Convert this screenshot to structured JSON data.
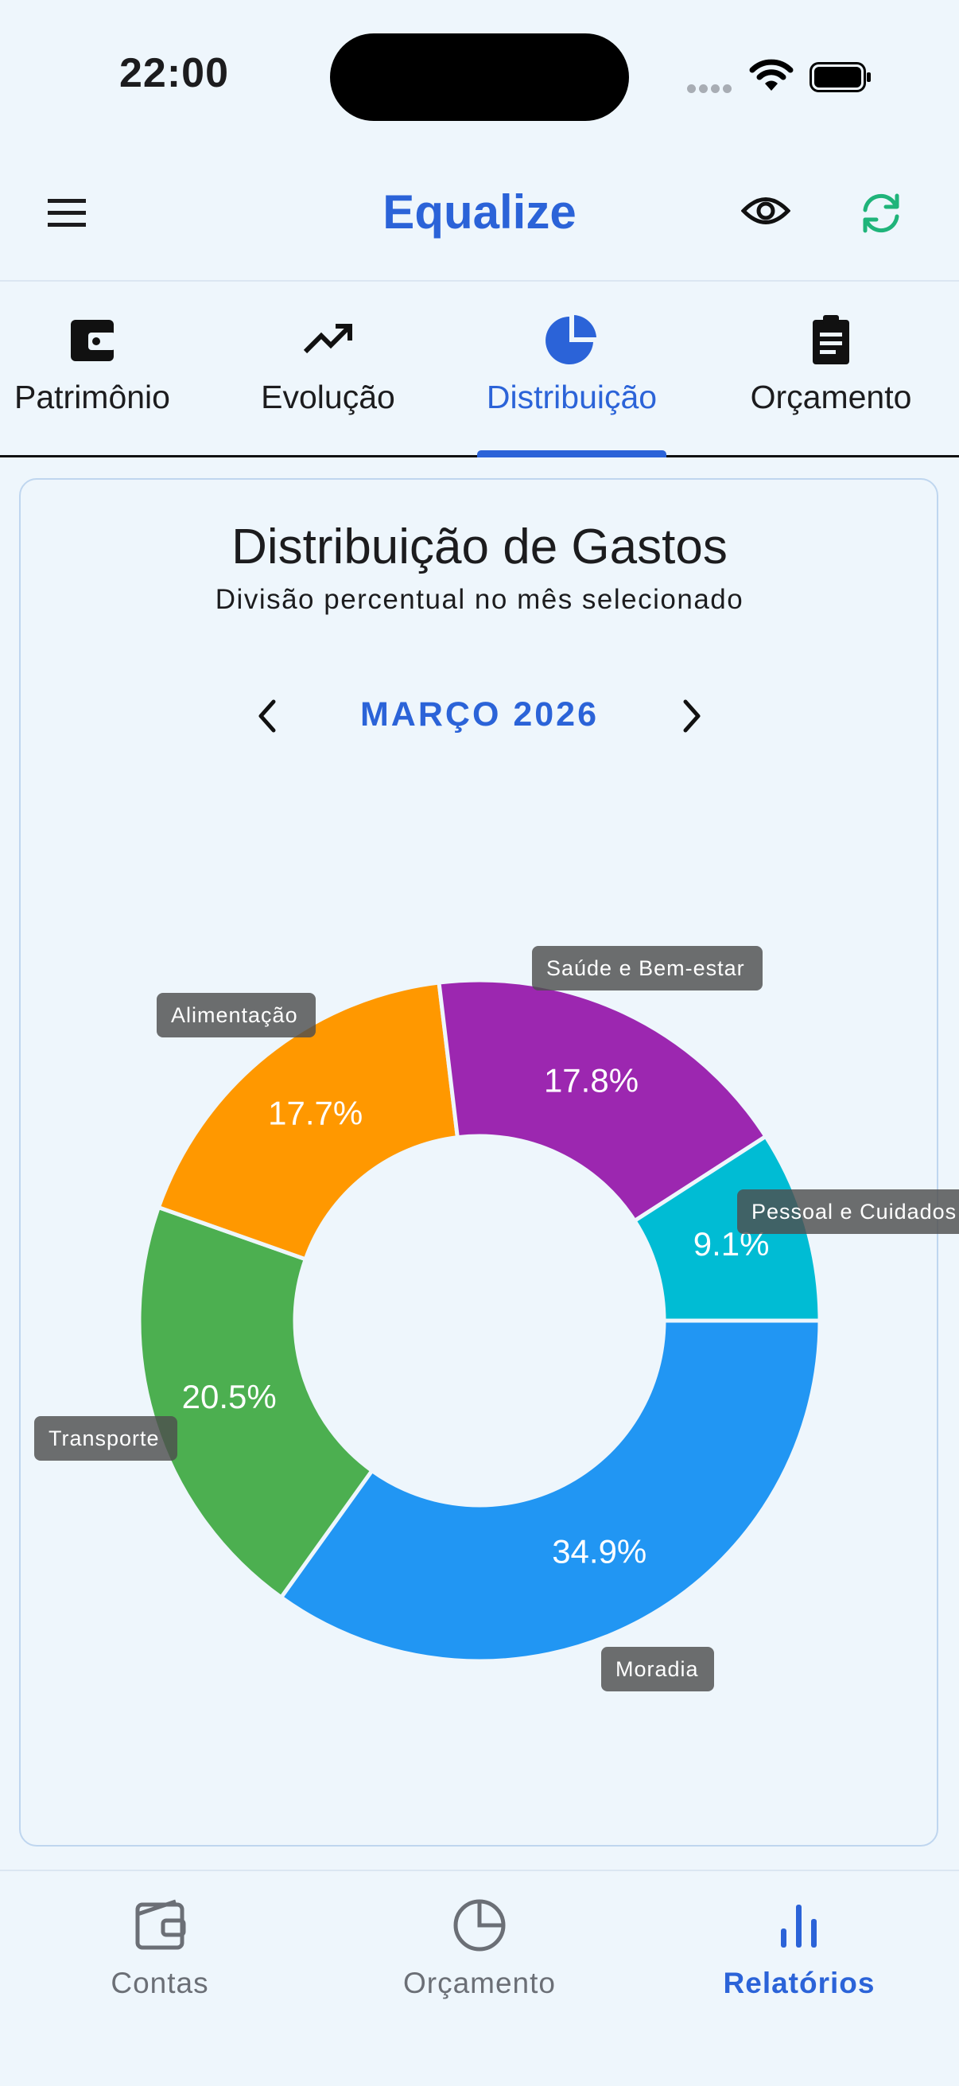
{
  "status_bar": {
    "time": "22:00"
  },
  "app_bar": {
    "title": "Equalize",
    "menu_icon": "menu-icon",
    "eye_icon": "eye-icon",
    "sync_icon": "sync-icon"
  },
  "tabs": [
    {
      "label": "Patrimônio",
      "icon": "wallet-icon",
      "active": false
    },
    {
      "label": "Evolução",
      "icon": "trending-up-icon",
      "active": false
    },
    {
      "label": "Distribuição",
      "icon": "pie-chart-icon",
      "active": true
    },
    {
      "label": "Orçamento",
      "icon": "clipboard-icon",
      "active": false
    }
  ],
  "card": {
    "title": "Distribuição de Gastos",
    "subtitle": "Divisão percentual no mês selecionado",
    "month": "MARÇO 2026"
  },
  "chart_data": {
    "type": "pie",
    "donut": true,
    "legend": "callout labels",
    "slices": [
      {
        "label": "Moradia",
        "value": 34.9,
        "display": "34.9%",
        "color": "#2196f3"
      },
      {
        "label": "Transporte",
        "value": 20.5,
        "display": "20.5%",
        "color": "#4caf50"
      },
      {
        "label": "Alimentação",
        "value": 17.7,
        "display": "17.7%",
        "color": "#ff9800"
      },
      {
        "label": "Saúde e Bem-estar",
        "value": 17.8,
        "display": "17.8%",
        "color": "#9c27b0"
      },
      {
        "label": "Pessoal e Cuidados",
        "value": 9.1,
        "display": "9.1%",
        "color": "#00bcd4"
      }
    ]
  },
  "bottom_nav": [
    {
      "label": "Contas",
      "icon": "wallet-icon",
      "active": false
    },
    {
      "label": "Orçamento",
      "icon": "pie-chart-icon",
      "active": false
    },
    {
      "label": "Relatórios",
      "icon": "bar-chart-icon",
      "active": true
    }
  ],
  "colors": {
    "accent": "#2b63d8",
    "sync": "#1fb47a",
    "background": "#eef6fc",
    "inactive": "#6b6f76"
  }
}
